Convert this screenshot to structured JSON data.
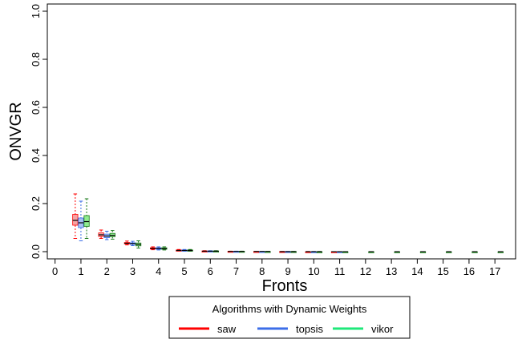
{
  "chart_data": {
    "type": "box",
    "xlabel": "Fronts",
    "ylabel": "ONVGR",
    "xlim": [
      -0.3,
      17.8
    ],
    "ylim": [
      -0.03,
      1.03
    ],
    "x_ticks": [
      0,
      1,
      2,
      3,
      4,
      5,
      6,
      7,
      8,
      9,
      10,
      11,
      12,
      13,
      14,
      15,
      16,
      17
    ],
    "y_ticks": [
      0.0,
      0.2,
      0.4,
      0.6,
      0.8,
      1.0
    ],
    "y_tick_labels": [
      "0.0",
      "0.2",
      "0.4",
      "0.6",
      "0.8",
      "1.0"
    ],
    "legend": {
      "title": "Algorithms with Dynamic Weights",
      "position": "bottom",
      "entries": [
        "saw",
        "topsis",
        "vikor"
      ]
    },
    "series": [
      {
        "name": "saw",
        "line_color": "#ff0000",
        "fill_color": "#f5a3a3",
        "boxes": [
          {
            "front": 1,
            "min": 0.055,
            "q1": 0.11,
            "median": 0.13,
            "q3": 0.155,
            "max": 0.24
          },
          {
            "front": 2,
            "min": 0.055,
            "q1": 0.063,
            "median": 0.07,
            "q3": 0.078,
            "max": 0.09
          },
          {
            "front": 3,
            "min": 0.028,
            "q1": 0.032,
            "median": 0.035,
            "q3": 0.038,
            "max": 0.044
          },
          {
            "front": 4,
            "min": 0.008,
            "q1": 0.011,
            "median": 0.013,
            "q3": 0.016,
            "max": 0.02
          },
          {
            "front": 5,
            "min": 0.003,
            "q1": 0.004,
            "median": 0.005,
            "q3": 0.007,
            "max": 0.009
          },
          {
            "front": 6,
            "min": 0.001,
            "q1": 0.002,
            "median": 0.002,
            "q3": 0.003,
            "max": 0.004
          },
          {
            "front": 7,
            "min": 0.0,
            "q1": 0.001,
            "median": 0.001,
            "q3": 0.002,
            "max": 0.002
          },
          {
            "front": 8,
            "min": 0.0,
            "q1": 0.0,
            "median": 0.001,
            "q3": 0.001,
            "max": 0.001
          },
          {
            "front": 9,
            "min": 0.0,
            "q1": 0.0,
            "median": 0.0,
            "q3": 0.001,
            "max": 0.001
          },
          {
            "front": 10,
            "min": 0.0,
            "q1": 0.0,
            "median": 0.0,
            "q3": 0.0,
            "max": 0.001
          },
          {
            "front": 11,
            "min": 0.0,
            "q1": 0.0,
            "median": 0.0,
            "q3": 0.0,
            "max": 0.0
          }
        ]
      },
      {
        "name": "topsis",
        "line_color": "#3c6ee8",
        "fill_color": "#a9c1f2",
        "boxes": [
          {
            "front": 1,
            "min": 0.045,
            "q1": 0.1,
            "median": 0.12,
            "q3": 0.14,
            "max": 0.21
          },
          {
            "front": 2,
            "min": 0.05,
            "q1": 0.058,
            "median": 0.065,
            "q3": 0.073,
            "max": 0.085
          },
          {
            "front": 3,
            "min": 0.025,
            "q1": 0.03,
            "median": 0.034,
            "q3": 0.037,
            "max": 0.043
          },
          {
            "front": 4,
            "min": 0.007,
            "q1": 0.01,
            "median": 0.013,
            "q3": 0.016,
            "max": 0.02
          },
          {
            "front": 5,
            "min": 0.002,
            "q1": 0.004,
            "median": 0.005,
            "q3": 0.007,
            "max": 0.009
          },
          {
            "front": 6,
            "min": 0.001,
            "q1": 0.002,
            "median": 0.002,
            "q3": 0.003,
            "max": 0.004
          },
          {
            "front": 7,
            "min": 0.0,
            "q1": 0.001,
            "median": 0.001,
            "q3": 0.002,
            "max": 0.002
          },
          {
            "front": 8,
            "min": 0.0,
            "q1": 0.0,
            "median": 0.001,
            "q3": 0.001,
            "max": 0.001
          },
          {
            "front": 9,
            "min": 0.0,
            "q1": 0.0,
            "median": 0.0,
            "q3": 0.001,
            "max": 0.001
          },
          {
            "front": 10,
            "min": 0.0,
            "q1": 0.0,
            "median": 0.0,
            "q3": 0.0,
            "max": 0.001
          },
          {
            "front": 11,
            "min": 0.0,
            "q1": 0.0,
            "median": 0.0,
            "q3": 0.0,
            "max": 0.0
          }
        ]
      },
      {
        "name": "vikor",
        "line_color": "#1a7a1a",
        "fill_color": "#90ec90",
        "boxes": [
          {
            "front": 1,
            "min": 0.055,
            "q1": 0.105,
            "median": 0.125,
            "q3": 0.15,
            "max": 0.22
          },
          {
            "front": 2,
            "min": 0.052,
            "q1": 0.062,
            "median": 0.068,
            "q3": 0.076,
            "max": 0.088
          },
          {
            "front": 3,
            "min": 0.015,
            "q1": 0.024,
            "median": 0.03,
            "q3": 0.036,
            "max": 0.045
          },
          {
            "front": 4,
            "min": 0.007,
            "q1": 0.01,
            "median": 0.012,
            "q3": 0.016,
            "max": 0.02
          },
          {
            "front": 5,
            "min": 0.002,
            "q1": 0.004,
            "median": 0.005,
            "q3": 0.007,
            "max": 0.009
          },
          {
            "front": 6,
            "min": 0.001,
            "q1": 0.002,
            "median": 0.002,
            "q3": 0.003,
            "max": 0.004
          },
          {
            "front": 7,
            "min": 0.0,
            "q1": 0.001,
            "median": 0.001,
            "q3": 0.002,
            "max": 0.002
          },
          {
            "front": 8,
            "min": 0.0,
            "q1": 0.0,
            "median": 0.001,
            "q3": 0.001,
            "max": 0.001
          },
          {
            "front": 9,
            "min": 0.0,
            "q1": 0.0,
            "median": 0.0,
            "q3": 0.001,
            "max": 0.001
          },
          {
            "front": 10,
            "min": 0.0,
            "q1": 0.0,
            "median": 0.0,
            "q3": 0.0,
            "max": 0.001
          },
          {
            "front": 11,
            "min": 0.0,
            "q1": 0.0,
            "median": 0.0,
            "q3": 0.0,
            "max": 0.0
          },
          {
            "front": 12,
            "min": 0.0,
            "q1": 0.0,
            "median": 0.0,
            "q3": 0.0,
            "max": 0.0
          },
          {
            "front": 13,
            "min": 0.0,
            "q1": 0.0,
            "median": 0.0,
            "q3": 0.0,
            "max": 0.0
          },
          {
            "front": 14,
            "min": 0.0,
            "q1": 0.0,
            "median": 0.0,
            "q3": 0.0,
            "max": 0.0
          },
          {
            "front": 15,
            "min": 0.0,
            "q1": 0.0,
            "median": 0.0,
            "q3": 0.0,
            "max": 0.0
          },
          {
            "front": 16,
            "min": 0.0,
            "q1": 0.0,
            "median": 0.0,
            "q3": 0.0,
            "max": 0.0
          },
          {
            "front": 17,
            "min": 0.0,
            "q1": 0.0,
            "median": 0.0,
            "q3": 0.0,
            "max": 0.0
          }
        ]
      }
    ]
  }
}
